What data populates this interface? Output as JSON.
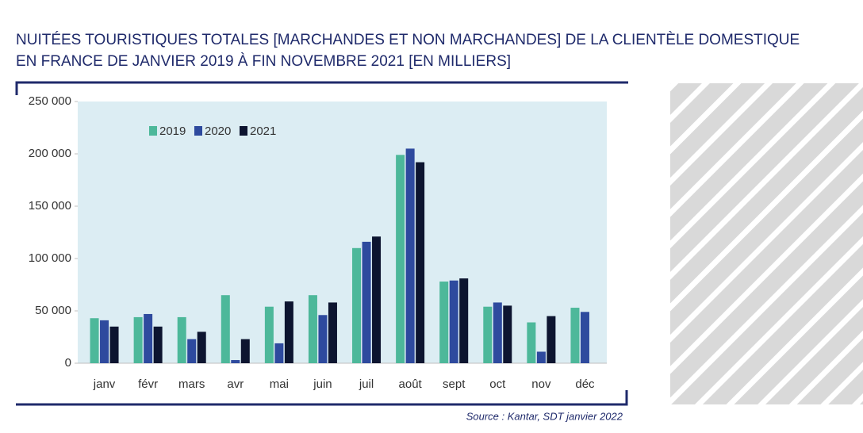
{
  "chart_data": {
    "type": "bar",
    "title": [
      "NUITÉES TOURISTIQUES TOTALES [MARCHANDES ET NON MARCHANDES] DE LA CLIENTÈLE DOMESTIQUE",
      "EN FRANCE DE JANVIER 2019 À FIN NOVEMBRE 2021 [EN MILLIERS]"
    ],
    "source": "Source :  Kantar, SDT janvier 2022",
    "categories": [
      "janv",
      "févr",
      "mars",
      "avr",
      "mai",
      "juin",
      "juil",
      "août",
      "sept",
      "oct",
      "nov",
      "déc"
    ],
    "series": [
      {
        "name": "2019",
        "color": "#4db89a",
        "values": [
          43000,
          44000,
          44000,
          65000,
          54000,
          65000,
          110000,
          199000,
          78000,
          54000,
          39000,
          53000
        ]
      },
      {
        "name": "2020",
        "color": "#2e4a9e",
        "values": [
          41000,
          47000,
          23000,
          3000,
          19000,
          46000,
          116000,
          205000,
          79000,
          58000,
          11000,
          49000
        ]
      },
      {
        "name": "2021",
        "color": "#0d1530",
        "values": [
          35000,
          35000,
          30000,
          23000,
          59000,
          58000,
          121000,
          192000,
          81000,
          55000,
          45000,
          null
        ]
      }
    ],
    "ylim": [
      0,
      250000
    ],
    "yticks": [
      0,
      {
        "value": 50000,
        "label": "50 000"
      },
      {
        "value": 100000,
        "label": "100 000"
      },
      {
        "value": 150000,
        "label": "150 000"
      },
      {
        "value": 200000,
        "label": "200 000"
      },
      {
        "value": 250000,
        "label": "250 000"
      }
    ],
    "grid": false,
    "legend": "top-left"
  }
}
